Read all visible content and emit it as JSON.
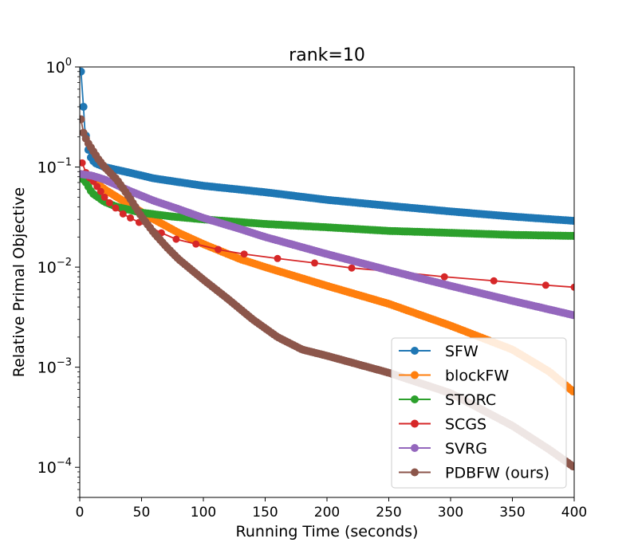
{
  "chart_data": {
    "type": "line",
    "title": "rank=10",
    "xlabel": "Running Time (seconds)",
    "ylabel": "Relative Primal Objective",
    "xlim": [
      0,
      400
    ],
    "ylim": [
      5e-05,
      1
    ],
    "yscale": "log",
    "grid": false,
    "legend_position": "lower-right",
    "x_ticks": [
      "0",
      "50",
      "100",
      "150",
      "200",
      "250",
      "300",
      "350",
      "400"
    ],
    "x_tick_values": [
      0,
      50,
      100,
      150,
      200,
      250,
      300,
      350,
      400
    ],
    "y_ticks": [
      {
        "base": "10",
        "exp": "0",
        "value": 1
      },
      {
        "base": "10",
        "exp": "−1",
        "value": 0.1
      },
      {
        "base": "10",
        "exp": "−2",
        "value": 0.01
      },
      {
        "base": "10",
        "exp": "−3",
        "value": 0.001
      },
      {
        "base": "10",
        "exp": "−4",
        "value": 0.0001
      }
    ],
    "series": [
      {
        "name": "SFW",
        "color": "#1f77b4",
        "marker_density": "dense",
        "x": [
          1,
          2,
          3,
          4,
          6,
          8,
          12,
          20,
          40,
          60,
          100,
          150,
          200,
          250,
          300,
          350,
          400
        ],
        "y": [
          0.9,
          0.6,
          0.4,
          0.25,
          0.17,
          0.13,
          0.11,
          0.1,
          0.088,
          0.077,
          0.065,
          0.056,
          0.047,
          0.041,
          0.036,
          0.032,
          0.029
        ]
      },
      {
        "name": "blockFW",
        "color": "#ff7f0e",
        "marker_density": "dense",
        "x": [
          1,
          10,
          20,
          40,
          60,
          80,
          100,
          130,
          150,
          200,
          250,
          300,
          350,
          380,
          400
        ],
        "y": [
          0.085,
          0.075,
          0.06,
          0.042,
          0.03,
          0.022,
          0.017,
          0.012,
          0.01,
          0.0065,
          0.0043,
          0.0026,
          0.0015,
          0.0009,
          0.00056
        ]
      },
      {
        "name": "STORC",
        "color": "#2ca02c",
        "marker_density": "dense",
        "x": [
          1,
          5,
          10,
          20,
          30,
          50,
          75,
          100,
          150,
          200,
          250,
          300,
          350,
          400
        ],
        "y": [
          0.08,
          0.07,
          0.055,
          0.045,
          0.04,
          0.035,
          0.032,
          0.03,
          0.027,
          0.025,
          0.023,
          0.022,
          0.021,
          0.0205
        ]
      },
      {
        "name": "SCGS",
        "color": "#d62728",
        "marker_density": "sparse",
        "x": [
          2,
          5,
          8,
          11,
          14,
          17,
          20,
          24,
          29,
          35,
          41,
          48,
          57,
          66,
          78,
          94,
          112,
          133,
          160,
          190,
          220,
          255,
          295,
          335,
          377,
          400
        ],
        "y": [
          0.11,
          0.088,
          0.078,
          0.072,
          0.064,
          0.057,
          0.05,
          0.044,
          0.039,
          0.034,
          0.031,
          0.028,
          0.025,
          0.022,
          0.019,
          0.017,
          0.015,
          0.0135,
          0.0122,
          0.011,
          0.0098,
          0.009,
          0.008,
          0.0073,
          0.0066,
          0.0063
        ]
      },
      {
        "name": "SVRG",
        "color": "#9467bd",
        "marker_density": "dense",
        "x": [
          1,
          10,
          20,
          30,
          40,
          60,
          80,
          100,
          130,
          150,
          200,
          250,
          300,
          350,
          400
        ],
        "y": [
          0.085,
          0.082,
          0.075,
          0.066,
          0.058,
          0.046,
          0.038,
          0.031,
          0.024,
          0.02,
          0.0135,
          0.0093,
          0.0065,
          0.0046,
          0.0033
        ]
      },
      {
        "name": "PDBFW (ours)",
        "color": "#8c564b",
        "marker_density": "dense",
        "x": [
          1,
          3,
          6,
          10,
          15,
          20,
          30,
          40,
          50,
          60,
          70,
          80,
          100,
          120,
          140,
          160,
          180,
          200,
          250,
          300,
          350,
          380,
          400
        ],
        "y": [
          0.3,
          0.22,
          0.18,
          0.15,
          0.12,
          0.1,
          0.075,
          0.05,
          0.032,
          0.022,
          0.016,
          0.012,
          0.0075,
          0.0048,
          0.003,
          0.002,
          0.0015,
          0.0013,
          0.00088,
          0.00055,
          0.00026,
          0.00015,
          0.0001
        ]
      }
    ]
  }
}
